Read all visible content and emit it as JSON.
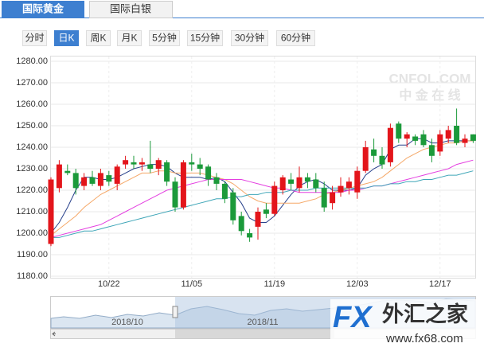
{
  "tabs": [
    "国际黄金",
    "国际白银"
  ],
  "periods": [
    "分时",
    "日K",
    "周K",
    "月K",
    "5分钟",
    "15分钟",
    "30分钟",
    "60分钟"
  ],
  "watermark": {
    "main": "CNFOL.COM",
    "sub": "中 金 在 线"
  },
  "navigator": {
    "labels": [
      "2018/10",
      "2018/11"
    ]
  },
  "logo": {
    "mark": "FX",
    "name": "外汇之家",
    "url": "www.fx68.com"
  },
  "chart_data": {
    "type": "candlestick",
    "categories": [
      null,
      null,
      null,
      null,
      null,
      null,
      null,
      "10/22",
      null,
      null,
      null,
      null,
      null,
      null,
      null,
      null,
      null,
      "11/05",
      null,
      null,
      null,
      null,
      null,
      null,
      null,
      null,
      null,
      "11/19",
      null,
      null,
      null,
      null,
      null,
      null,
      null,
      null,
      null,
      "12/03",
      null,
      null,
      null,
      null,
      null,
      null,
      null,
      null,
      null,
      "12/17",
      null,
      null,
      null,
      null
    ],
    "open": [
      1195,
      1221,
      1229,
      1228,
      1222,
      1226,
      1222,
      1227,
      1223,
      1232,
      1233,
      1232,
      1232,
      1230,
      1233,
      1224,
      1212,
      1233,
      1232,
      1231,
      1226,
      1223,
      1219,
      1208,
      1200,
      1203,
      1211,
      1209,
      1220,
      1225,
      1221,
      1226,
      1225,
      1221,
      1214,
      1219,
      1221,
      1219,
      1229,
      1239,
      1236,
      1233,
      1251,
      1244,
      1245,
      1246,
      1241,
      1238,
      1244,
      1250,
      1242,
      1246
    ],
    "high": [
      1226,
      1234,
      1232,
      1230,
      1228,
      1229,
      1230,
      1229,
      1232,
      1236,
      1236,
      1235,
      1243,
      1235,
      1234,
      1226,
      1234,
      1237,
      1235,
      1232,
      1228,
      1224,
      1221,
      1210,
      1202,
      1212,
      1214,
      1224,
      1227,
      1228,
      1231,
      1228,
      1228,
      1224,
      1222,
      1226,
      1226,
      1231,
      1243,
      1244,
      1240,
      1251,
      1252,
      1247,
      1246,
      1248,
      1244,
      1248,
      1250,
      1258,
      1246,
      1246
    ],
    "low": [
      1194,
      1219,
      1227,
      1218,
      1220,
      1222,
      1220,
      1222,
      1220,
      1230,
      1230,
      1229,
      1228,
      1227,
      1222,
      1210,
      1211,
      1229,
      1227,
      1222,
      1220,
      1214,
      1204,
      1199,
      1196,
      1197,
      1207,
      1208,
      1218,
      1220,
      1219,
      1221,
      1219,
      1210,
      1211,
      1217,
      1218,
      1216,
      1228,
      1233,
      1230,
      1231,
      1242,
      1240,
      1241,
      1240,
      1233,
      1236,
      1242,
      1241,
      1240,
      1242
    ],
    "close": [
      1225,
      1232,
      1228,
      1221,
      1226,
      1223,
      1228,
      1224,
      1231,
      1234,
      1232,
      1233,
      1230,
      1234,
      1224,
      1212,
      1233,
      1232,
      1230,
      1225,
      1223,
      1216,
      1206,
      1201,
      1198,
      1210,
      1209,
      1222,
      1226,
      1223,
      1226,
      1224,
      1221,
      1212,
      1219,
      1222,
      1224,
      1229,
      1240,
      1236,
      1232,
      1249,
      1244,
      1246,
      1243,
      1241,
      1236,
      1246,
      1248,
      1242,
      1244,
      1243
    ],
    "up_color": "#e3151b",
    "down_color": "#1b9a3a",
    "lines": [
      {
        "color": "#27408b",
        "values": [
          1200,
          1205,
          1212,
          1220,
          1226,
          1226,
          1225,
          1225,
          1226,
          1228,
          1230,
          1231,
          1232,
          1232,
          1231,
          1228,
          1226,
          1226,
          1226,
          1225,
          1226,
          1224,
          1219,
          1214,
          1207,
          1205,
          1205,
          1208,
          1213,
          1218,
          1222,
          1224,
          1225,
          1223,
          1220,
          1220,
          1220,
          1221,
          1227,
          1230,
          1232,
          1239,
          1241,
          1241,
          1244,
          1244,
          1242,
          1242,
          1243,
          1243,
          1243,
          1243
        ]
      },
      {
        "color": "#f5a868",
        "values": [
          1199,
          1202,
          1205,
          1208,
          1212,
          1215,
          1218,
          1220,
          1222,
          1224,
          1226,
          1228,
          1228,
          1229,
          1229,
          1228,
          1228,
          1228,
          1228,
          1227,
          1226,
          1225,
          1223,
          1220,
          1217,
          1215,
          1214,
          1214,
          1214,
          1214,
          1214,
          1215,
          1216,
          1218,
          1219,
          1220,
          1221,
          1222,
          1223,
          1224,
          1226,
          1229,
          1232,
          1235,
          1237,
          1239,
          1240,
          1241,
          1242,
          1242,
          1243,
          1243
        ]
      },
      {
        "color": "#e43fe0",
        "values": [
          1198,
          1199,
          1200,
          1201,
          1202,
          1203,
          1204,
          1206,
          1208,
          1210,
          1212,
          1214,
          1216,
          1218,
          1220,
          1221,
          1222,
          1223,
          1224,
          1225,
          1225,
          1225,
          1225,
          1225,
          1224,
          1223,
          1222,
          1221,
          1221,
          1220,
          1219,
          1219,
          1219,
          1219,
          1219,
          1219,
          1220,
          1220,
          1221,
          1222,
          1222,
          1223,
          1224,
          1225,
          1226,
          1227,
          1228,
          1229,
          1230,
          1232,
          1233,
          1234
        ]
      },
      {
        "color": "#3fa6b8",
        "values": [
          1198,
          1198,
          1199,
          1200,
          1201,
          1201,
          1202,
          1203,
          1204,
          1205,
          1206,
          1207,
          1208,
          1209,
          1210,
          1211,
          1212,
          1213,
          1214,
          1215,
          1216,
          1216,
          1217,
          1217,
          1218,
          1218,
          1219,
          1219,
          1219,
          1220,
          1220,
          1220,
          1221,
          1221,
          1221,
          1221,
          1221,
          1221,
          1221,
          1222,
          1222,
          1223,
          1223,
          1224,
          1224,
          1225,
          1225,
          1226,
          1227,
          1227,
          1228,
          1229
        ]
      }
    ],
    "ylim": [
      1180,
      1280
    ],
    "yticks": [
      {
        "value": 1180,
        "label": "1180.00"
      },
      {
        "value": 1190,
        "label": "1190.00"
      },
      {
        "value": 1200,
        "label": "1200.00"
      },
      {
        "value": 1210,
        "label": "1210.00"
      },
      {
        "value": 1220,
        "label": "1220.00"
      },
      {
        "value": 1230,
        "label": "1230.00"
      },
      {
        "value": 1240,
        "label": "1240.00"
      },
      {
        "value": 1250,
        "label": "1250.00"
      },
      {
        "value": 1260,
        "label": "1260.00"
      },
      {
        "value": 1270,
        "label": "1270.00"
      },
      {
        "value": 1280,
        "label": "1280.00"
      }
    ],
    "grid": true
  }
}
